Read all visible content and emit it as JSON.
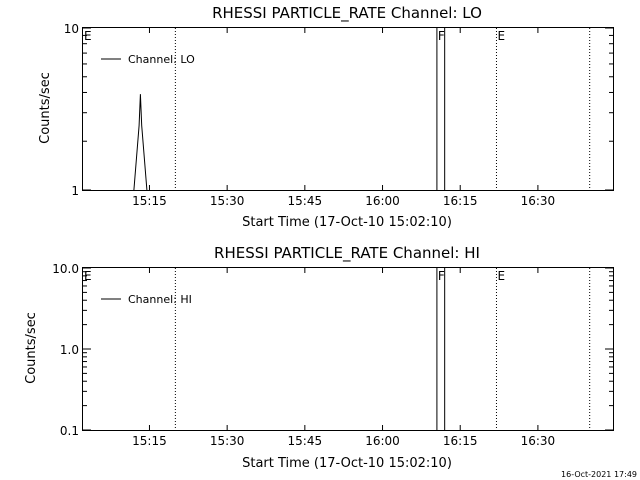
{
  "footer": {
    "timestamp": "16-Oct-2021 17:49"
  },
  "chart_data": [
    {
      "type": "line",
      "title": "RHESSI PARTICLE_RATE Channel: LO",
      "xlabel": "Start Time (17-Oct-10 15:02:10)",
      "ylabel": "Counts/sec",
      "yscale": "log",
      "ylim": [
        1,
        10
      ],
      "xlim": [
        "15:02:10",
        "16:44:30"
      ],
      "y_ticks": [
        "1",
        "10"
      ],
      "x_ticks": [
        "15:15",
        "15:30",
        "15:45",
        "16:00",
        "16:15",
        "16:30"
      ],
      "legend": "top-left",
      "series": [
        {
          "name": "Channel: LO",
          "x": [
            "15:12:00",
            "15:13:00",
            "15:13:15",
            "15:13:30",
            "15:14:30"
          ],
          "y": [
            1,
            2.5,
            3.9,
            2.5,
            1
          ]
        }
      ],
      "markers": [
        {
          "time": "15:02:10",
          "label": "E",
          "style": "none"
        },
        {
          "time": "15:20:00",
          "label": "",
          "style": "dotted"
        },
        {
          "time": "16:10:30",
          "label": "F",
          "style": "solid"
        },
        {
          "time": "16:12:00",
          "label": "",
          "style": "solid"
        },
        {
          "time": "16:22:00",
          "label": "E",
          "style": "dotted"
        },
        {
          "time": "16:40:00",
          "label": "",
          "style": "dotted"
        }
      ]
    },
    {
      "type": "line",
      "title": "RHESSI PARTICLE_RATE Channel: HI",
      "xlabel": "Start Time (17-Oct-10 15:02:10)",
      "ylabel": "Counts/sec",
      "yscale": "log",
      "ylim": [
        0.1,
        10
      ],
      "xlim": [
        "15:02:10",
        "16:44:30"
      ],
      "y_ticks": [
        "0.1",
        "1.0",
        "10.0"
      ],
      "x_ticks": [
        "15:15",
        "15:30",
        "15:45",
        "16:00",
        "16:15",
        "16:30"
      ],
      "legend": "top-left",
      "series": [
        {
          "name": "Channel: HI",
          "x": [],
          "y": []
        }
      ],
      "markers": [
        {
          "time": "15:02:10",
          "label": "E",
          "style": "none"
        },
        {
          "time": "15:20:00",
          "label": "",
          "style": "dotted"
        },
        {
          "time": "16:10:30",
          "label": "F",
          "style": "solid"
        },
        {
          "time": "16:12:00",
          "label": "",
          "style": "solid"
        },
        {
          "time": "16:22:00",
          "label": "E",
          "style": "dotted"
        },
        {
          "time": "16:40:00",
          "label": "",
          "style": "dotted"
        }
      ]
    }
  ]
}
